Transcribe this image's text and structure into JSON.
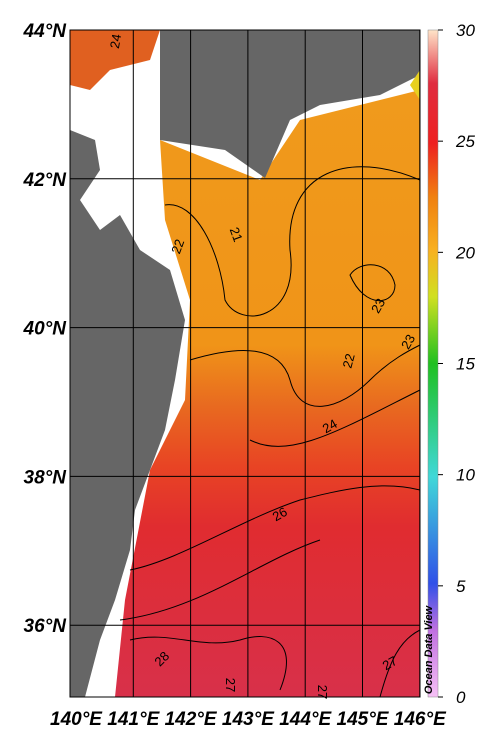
{
  "map": {
    "lat_ticks": [
      {
        "value": 44,
        "label": "44°N"
      },
      {
        "value": 42,
        "label": "42°N"
      },
      {
        "value": 40,
        "label": "40°N"
      },
      {
        "value": 38,
        "label": "38°N"
      },
      {
        "value": 36,
        "label": "36°N"
      }
    ],
    "lon_ticks": [
      {
        "value": 140,
        "label": "140°E"
      },
      {
        "value": 141,
        "label": "141°E"
      },
      {
        "value": 142,
        "label": "142°E"
      },
      {
        "value": 143,
        "label": "143°E"
      },
      {
        "value": 144,
        "label": "144°E"
      },
      {
        "value": 145,
        "label": "145°E"
      },
      {
        "value": 146,
        "label": "146°E"
      }
    ],
    "colorbar": {
      "range": [
        0,
        30
      ],
      "ticks": [
        0,
        5,
        10,
        15,
        20,
        25,
        30
      ]
    },
    "contour_labels": [
      "24",
      "22",
      "21",
      "23",
      "22",
      "23",
      "24",
      "26",
      "28",
      "27",
      "27",
      "27"
    ],
    "watermark": "Ocean Data View"
  }
}
